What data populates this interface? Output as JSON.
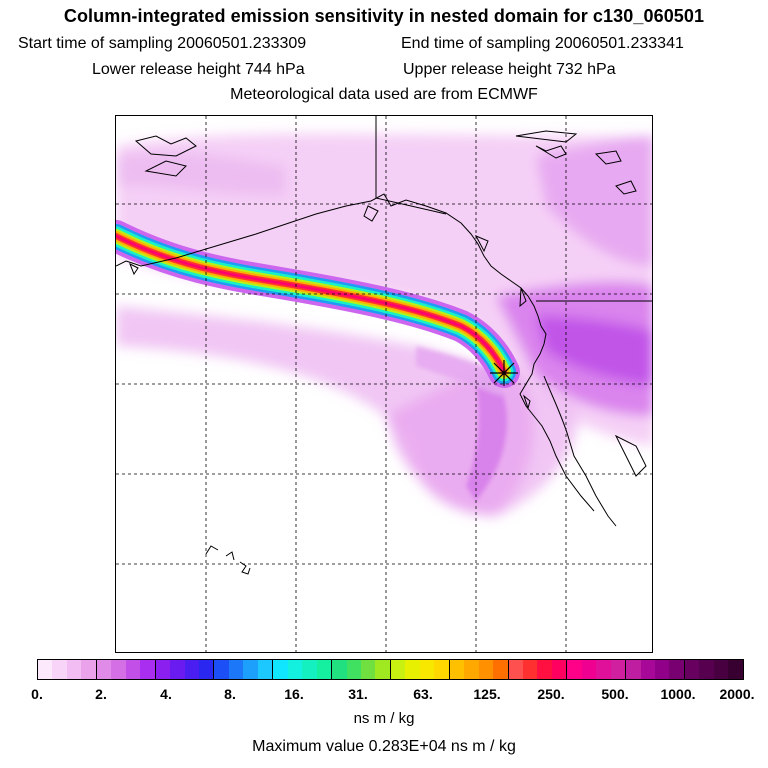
{
  "header": {
    "title": "Column-integrated emission sensitivity in nested domain for c130_060501",
    "start_label": "Start time of sampling 20060501.233309",
    "end_label": "End time of sampling 20060501.233341",
    "lower_label": "Lower release height  744 hPa",
    "upper_label": "Upper release height  732 hPa",
    "met_label": "Meteorological data used are from ECMWF"
  },
  "colorbar": {
    "ticks": [
      "0.",
      "2.",
      "4.",
      "8.",
      "16.",
      "31.",
      "63.",
      "125.",
      "250.",
      "500.",
      "1000.",
      "2000."
    ],
    "colors": [
      "#fce9fc",
      "#f8d4f8",
      "#f2bdf2",
      "#eaa3ea",
      "#e08be8",
      "#d46fe6",
      "#c14fe8",
      "#a92ef0",
      "#8a1ff0",
      "#6a1cf0",
      "#4a1df0",
      "#2a28f0",
      "#1c4ff5",
      "#1c78f8",
      "#1ca0fb",
      "#1cc8fd",
      "#10e6ff",
      "#14f0e0",
      "#14f0c0",
      "#14f0a0",
      "#20e080",
      "#40e060",
      "#70e040",
      "#a0e820",
      "#c8f010",
      "#e6f000",
      "#f8e800",
      "#ffd800",
      "#ffc000",
      "#ffa800",
      "#ff9000",
      "#ff7000",
      "#ff5050",
      "#ff3030",
      "#ff1040",
      "#ff0060",
      "#ff0088",
      "#f00090",
      "#e0109a",
      "#d020a0",
      "#c01ea0",
      "#a80898",
      "#900088",
      "#780070",
      "#680060",
      "#580050",
      "#480040",
      "#380030"
    ],
    "units_label": "ns m / kg",
    "max_label": "Maximum value  0.283E+04 ns m / kg"
  },
  "map": {
    "release_marker": "asterisk-release-point",
    "plume_color": "#d060e8"
  }
}
